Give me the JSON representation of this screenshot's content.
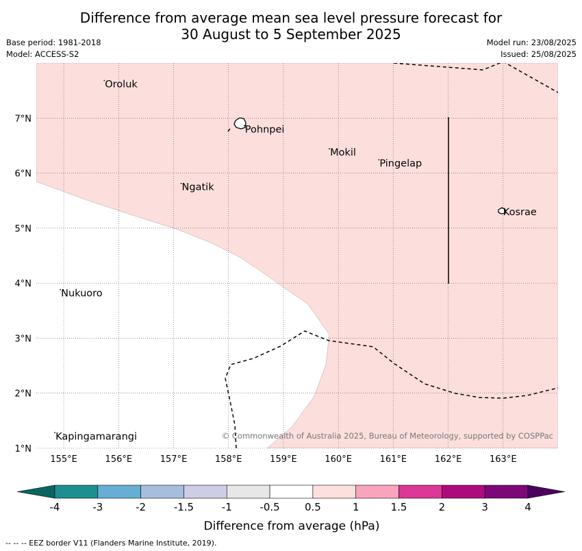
{
  "title": {
    "line1": "Difference from average mean sea level pressure forecast for",
    "line2": "30 August to 5 September 2025"
  },
  "meta": {
    "base_period": "Base period: 1981-2018",
    "model": "Model: ACCESS-S2",
    "model_run": "Model run: 23/08/2025",
    "issued": "Issued: 25/08/2025"
  },
  "map": {
    "lon_range": [
      154.5,
      164.0
    ],
    "lat_range": [
      1.0,
      8.0
    ],
    "lon_ticks": [
      "155°E",
      "156°E",
      "157°E",
      "158°E",
      "159°E",
      "160°E",
      "161°E",
      "162°E",
      "163°E"
    ],
    "lat_ticks": [
      "1°N",
      "2°N",
      "3°N",
      "4°N",
      "5°N",
      "6°N",
      "7°N"
    ],
    "fill_color_positive": "#fcdfdd",
    "places": [
      {
        "name": "Oroluk",
        "lon": 155.75,
        "lat": 7.62
      },
      {
        "name": "Pohnpei",
        "lon": 158.3,
        "lat": 6.8
      },
      {
        "name": "Mokil",
        "lon": 159.85,
        "lat": 6.38
      },
      {
        "name": "Pingelap",
        "lon": 160.75,
        "lat": 6.18
      },
      {
        "name": "Ngatik",
        "lon": 157.15,
        "lat": 5.75
      },
      {
        "name": "Kosrae",
        "lon": 163.0,
        "lat": 5.3
      },
      {
        "name": "Nukuoro",
        "lon": 154.95,
        "lat": 3.82
      },
      {
        "name": "Kapingamarangi",
        "lon": 154.85,
        "lat": 1.22
      }
    ],
    "copyright": "© Commonwealth of Australia 2025, Bureau of Meteorology, supported by COSPPac"
  },
  "colorbar": {
    "label": "Difference from average (hPa)",
    "ticks": [
      "-4",
      "-3",
      "-2",
      "-1.5",
      "-1",
      "-0.5",
      "0.5",
      "1",
      "1.5",
      "2",
      "3",
      "4"
    ],
    "colors": [
      "#1c9090",
      "#66aed4",
      "#a7bddd",
      "#cdcde6",
      "#e7e7e7",
      "#ffffff",
      "#fce0e0",
      "#f8a4bd",
      "#dc3898",
      "#ad0a7e",
      "#7c0878"
    ],
    "under_color": "#0a6460",
    "over_color": "#4d0060"
  },
  "footer": "--  --  -- EEZ border V11 (Flanders Marine Institute, 2019)."
}
